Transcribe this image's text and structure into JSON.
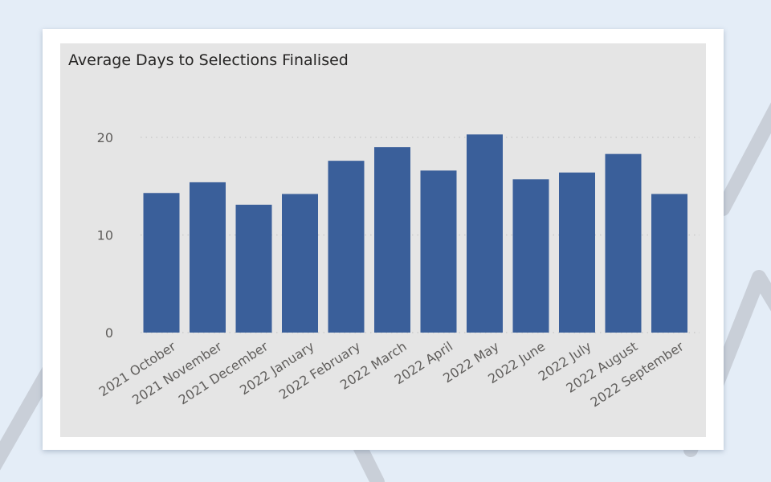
{
  "colors": {
    "page_background": "#e4edf7",
    "card_background": "#ffffff",
    "plot_background": "#e5e5e5",
    "bar": "#3a5f9a",
    "gridline": "#c8c8c8",
    "axis_text": "#605e5c"
  },
  "chart_data": {
    "type": "bar",
    "title": "Average Days to Selections Finalised",
    "xlabel": "",
    "ylabel": "",
    "ylim": [
      0,
      23
    ],
    "yticks": [
      0,
      10,
      20
    ],
    "grid": true,
    "legend": "none",
    "categories": [
      "2021 October",
      "2021 November",
      "2021 December",
      "2022 January",
      "2022 February",
      "2022 March",
      "2022 April",
      "2022 May",
      "2022 June",
      "2022 July",
      "2022 August",
      "2022 September"
    ],
    "values": [
      14.3,
      15.4,
      13.1,
      14.2,
      17.6,
      19.0,
      16.6,
      20.3,
      15.7,
      16.4,
      18.3,
      14.2
    ]
  }
}
